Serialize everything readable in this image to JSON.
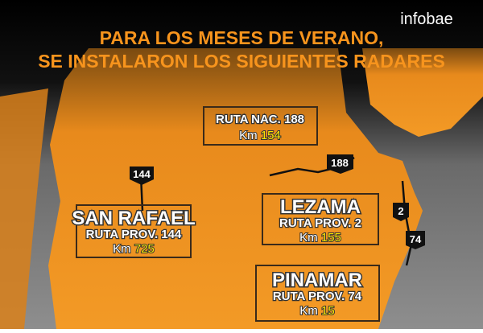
{
  "brand": "infobae",
  "title": [
    "PARA LOS MESES DE VERANO,",
    "SE INSTALARON LOS SIGUIENTES RADARES"
  ],
  "radars": [
    {
      "route": "RUTA NAC. 188",
      "km_label": "Km",
      "km": 154
    },
    {
      "place": "SAN RAFAEL",
      "route": "RUTA PROV. 144",
      "km_label": "Km",
      "km": 725
    },
    {
      "place": "LEZAMA",
      "route": "RUTA PROV. 2",
      "km_label": "Km",
      "km": 155
    },
    {
      "place": "PINAMAR",
      "route": "RUTA PROV. 74",
      "km_label": "Km",
      "km": 15
    }
  ],
  "shields": [
    144,
    188,
    2,
    74
  ]
}
